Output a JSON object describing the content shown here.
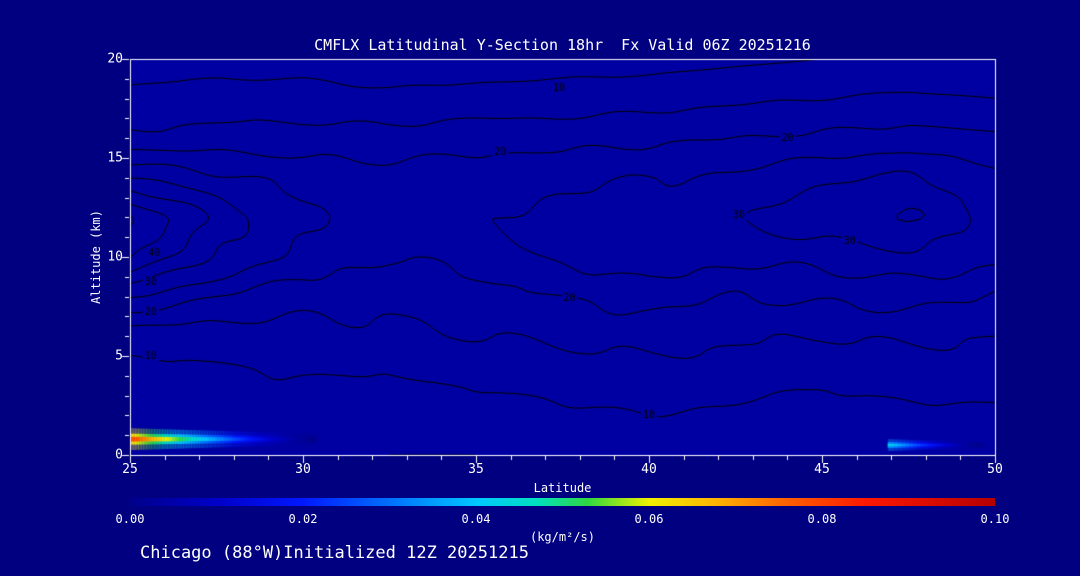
{
  "page": {
    "footer": "Chicago (88°W)Initialized 12Z 20251215"
  },
  "colors": {
    "background": "#000080",
    "plot_background": "#0000A2",
    "axis": "#FFFFFF",
    "text": "#FFFFFF",
    "contour_line": "#000000"
  },
  "chart_data": {
    "type": "contour",
    "title": "CMFLX Latitudinal Y-Section 18hr  Fx Valid 06Z 20251216",
    "xlabel": "Latitude",
    "ylabel": "Altitude (km)",
    "xlim": [
      25,
      50
    ],
    "ylim": [
      0,
      20
    ],
    "x_ticks": [
      25,
      30,
      35,
      40,
      45,
      50
    ],
    "y_ticks": [
      0,
      5,
      10,
      15,
      20
    ],
    "x_minor_step": 1,
    "y_minor_step": 1,
    "contour_levels": [
      5,
      10,
      15,
      20,
      25,
      30,
      35,
      40,
      45
    ],
    "labeled_levels": [
      10,
      20,
      30,
      40
    ],
    "contour_labels": [
      {
        "lat": 25.7,
        "alt": 10.2,
        "text": "40"
      },
      {
        "lat": 25.6,
        "alt": 8.7,
        "text": "30"
      },
      {
        "lat": 25.6,
        "alt": 7.2,
        "text": "20"
      },
      {
        "lat": 25.6,
        "alt": 5.0,
        "text": "10"
      },
      {
        "lat": 37.4,
        "alt": 18.5,
        "text": "10"
      },
      {
        "lat": 35.7,
        "alt": 15.3,
        "text": "20"
      },
      {
        "lat": 40.0,
        "alt": 2.0,
        "text": "10"
      },
      {
        "lat": 37.7,
        "alt": 7.9,
        "text": "20"
      },
      {
        "lat": 42.6,
        "alt": 12.1,
        "text": "30"
      },
      {
        "lat": 44.0,
        "alt": 16.0,
        "text": "20"
      },
      {
        "lat": 45.8,
        "alt": 10.8,
        "text": "30"
      }
    ],
    "grid": {
      "lat": [
        25,
        27.5,
        30,
        32.5,
        35,
        37.5,
        40,
        42.5,
        45,
        47.5,
        50
      ],
      "alt": [
        0,
        2,
        4,
        6,
        8,
        10,
        12,
        14,
        16,
        18,
        20
      ],
      "values": [
        [
          6,
          6,
          6,
          5,
          5,
          6,
          7,
          6,
          5,
          6,
          7
        ],
        [
          7,
          7,
          8,
          7,
          8,
          9,
          10,
          9,
          8,
          9,
          9
        ],
        [
          8,
          9,
          10,
          10,
          11,
          12,
          13,
          12,
          11,
          12,
          12
        ],
        [
          12,
          12,
          13,
          14,
          15,
          16,
          17,
          16,
          15,
          16,
          15
        ],
        [
          25,
          20,
          17,
          16,
          18,
          20,
          22,
          20,
          21,
          22,
          20
        ],
        [
          40,
          30,
          23,
          20,
          22,
          26,
          29,
          26,
          27,
          29,
          26
        ],
        [
          46,
          34,
          26,
          24,
          25,
          26,
          27,
          30,
          34,
          36,
          29
        ],
        [
          30,
          26,
          23,
          22,
          23,
          24,
          25,
          26,
          29,
          31,
          26
        ],
        [
          16,
          17,
          17,
          17,
          18,
          18,
          19,
          20,
          21,
          22,
          21
        ],
        [
          11,
          12,
          12,
          11,
          12,
          12,
          13,
          14,
          15,
          16,
          15
        ],
        [
          8,
          8,
          8,
          7,
          7,
          8,
          8,
          9,
          10,
          10,
          10
        ]
      ]
    },
    "surface_flux_maxima": [
      {
        "lat_start": 25.0,
        "lat_end": 30.3,
        "alt": 0.8,
        "thickness_km": 0.55,
        "peak_value": 0.062
      },
      {
        "lat_start": 46.9,
        "lat_end": 49.6,
        "alt": 0.5,
        "thickness_km": 0.3,
        "peak_value": 0.034
      }
    ],
    "colorbar": {
      "min": 0.0,
      "max": 0.1,
      "tick_labels": [
        "0.00",
        "0.02",
        "0.04",
        "0.06",
        "0.08",
        "0.10"
      ],
      "units": "(kg/m²/s)",
      "gradient_stops": [
        [
          "0.00",
          "#00008B"
        ],
        [
          "0.10",
          "#0000C8"
        ],
        [
          "0.20",
          "#0018FF"
        ],
        [
          "0.30",
          "#0070FF"
        ],
        [
          "0.40",
          "#00C8FF"
        ],
        [
          "0.47",
          "#00E0C0"
        ],
        [
          "0.53",
          "#30D840"
        ],
        [
          "0.60",
          "#F0F000"
        ],
        [
          "0.68",
          "#FFB000"
        ],
        [
          "0.76",
          "#FF6000"
        ],
        [
          "0.85",
          "#FF1800"
        ],
        [
          "1.00",
          "#B40000"
        ]
      ]
    }
  }
}
